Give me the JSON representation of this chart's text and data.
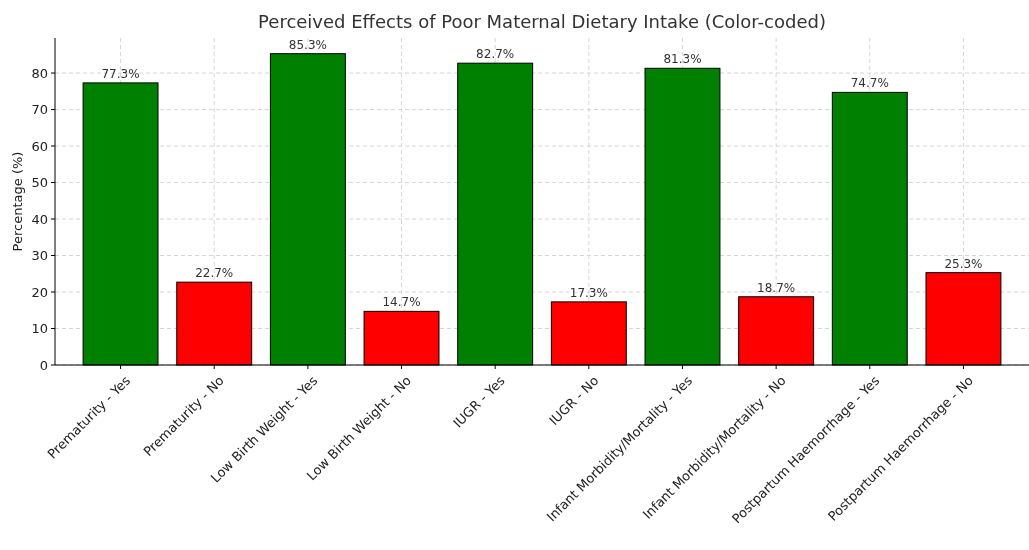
{
  "chart_data": {
    "type": "bar",
    "title": "Perceived Effects of Poor Maternal Dietary Intake (Color-coded)",
    "ylabel": "Percentage (%)",
    "categories": [
      "Prematurity - Yes",
      "Prematurity - No",
      "Low Birth Weight - Yes",
      "Low Birth Weight - No",
      "IUGR - Yes",
      "IUGR - No",
      "Infant Morbidity/Mortality - Yes",
      "Infant Morbidity/Mortality - No",
      "Postpartum Haemorrhage - Yes",
      "Postpartum Haemorrhage - No"
    ],
    "values": [
      77.3,
      22.7,
      85.3,
      14.7,
      82.7,
      17.3,
      81.3,
      18.7,
      74.7,
      25.3
    ],
    "colors": [
      "#008000",
      "#ff0000",
      "#008000",
      "#ff0000",
      "#008000",
      "#ff0000",
      "#008000",
      "#ff0000",
      "#008000",
      "#ff0000"
    ],
    "value_labels": [
      "77.3%",
      "22.7%",
      "85.3%",
      "14.7%",
      "82.7%",
      "17.3%",
      "81.3%",
      "18.7%",
      "74.7%",
      "25.3%"
    ],
    "ylim": [
      0,
      89.6
    ],
    "yticks": [
      0,
      10,
      20,
      30,
      40,
      50,
      60,
      70,
      80
    ],
    "grid": true
  }
}
